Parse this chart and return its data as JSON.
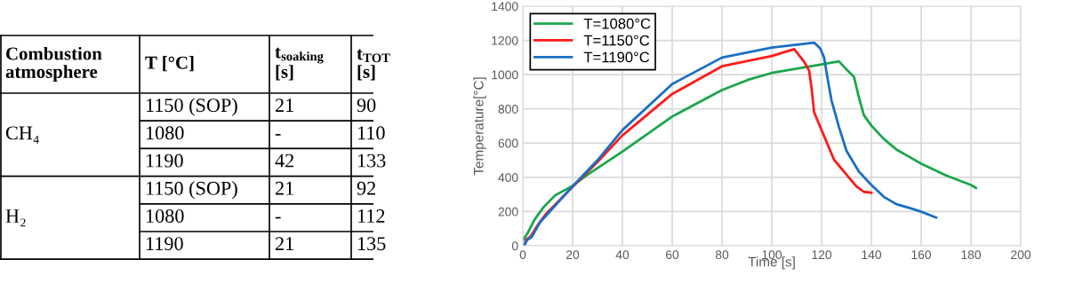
{
  "chart_data": [
    {
      "type": "other",
      "annotations": [
        "Combustion\natmosphere",
        "T [°C]",
        "t$_{soaking}$\n[s]",
        "t$_{TOT}$\n[s]",
        "CH₄",
        "1150 (SOP)",
        "21",
        "90",
        "1080",
        "-",
        "110",
        "1190",
        "42",
        "133",
        "H₂",
        "1150 (SOP)",
        "21",
        "92",
        "1080",
        "-",
        "112",
        "1190",
        "21",
        "135"
      ]
    },
    {
      "type": "line",
      "xlabel": "Time [s]",
      "ylabel": "Temperature[°C]",
      "xlim": [
        0,
        200
      ],
      "ylim": [
        0,
        1400
      ],
      "xticks": [
        0,
        20,
        40,
        60,
        80,
        100,
        120,
        140,
        160,
        180,
        200
      ],
      "yticks": [
        0,
        200,
        400,
        600,
        800,
        1000,
        1200,
        1400
      ],
      "grid": true,
      "legend": "top left",
      "series": [
        {
          "name": "T=1080°C",
          "color": "#1aa64a",
          "x": [
            0,
            1.8,
            4.8,
            8.3,
            13,
            20,
            26,
            40,
            60,
            80,
            90.5,
            100,
            120,
            127,
            130,
            133,
            135,
            137,
            140,
            145,
            150,
            160,
            170,
            180,
            182
          ],
          "values": [
            35,
            70,
            155,
            225,
            295,
            350,
            415,
            550,
            755,
            910,
            970,
            1010,
            1060,
            1078,
            1030,
            988,
            866,
            763,
            702,
            624,
            563,
            480,
            411,
            355,
            338
          ]
        },
        {
          "name": "T=1150°C",
          "color": "#ff1a1a",
          "x": [
            0.7,
            1.2,
            3,
            6,
            9.5,
            30,
            40,
            60,
            80,
            100,
            109,
            113,
            115,
            116,
            117,
            120,
            125,
            130,
            134,
            137,
            140
          ],
          "values": [
            0,
            35,
            52,
            121,
            190,
            490,
            645,
            887,
            1049,
            1109,
            1149,
            1075,
            1023,
            918,
            780,
            676,
            503,
            416,
            347,
            315,
            310
          ]
        },
        {
          "name": "T=1190°C",
          "color": "#1a6fc4",
          "x": [
            0.5,
            1.8,
            3.6,
            7,
            20,
            30,
            40,
            60,
            80,
            100,
            110,
            117,
            119.5,
            121,
            122.5,
            124,
            127,
            130,
            135,
            140,
            145,
            150,
            155,
            160,
            166
          ],
          "values": [
            0,
            35,
            52,
            139,
            347,
            500,
            676,
            945,
            1100,
            1158,
            1175,
            1187,
            1152,
            1100,
            970,
            849,
            693,
            555,
            433,
            355,
            286,
            243,
            222,
            199,
            165
          ]
        }
      ]
    }
  ]
}
